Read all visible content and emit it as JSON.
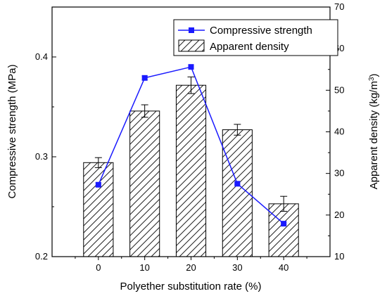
{
  "chart_data": {
    "type": "bar",
    "xlabel": "Polyether substitution rate (%)",
    "ylabel_left": "Compressive strength (MPa)",
    "ylabel_right": "Apparent density (kg/m³)",
    "ylabel_right_base": "Apparent density (kg/m",
    "ylabel_right_sup": "3",
    "ylabel_right_tail": ")",
    "categories": [
      "0",
      "10",
      "20",
      "30",
      "40"
    ],
    "ylim_left": [
      0.2,
      0.45
    ],
    "yticks_left": [
      "0.2",
      "0.3",
      "0.4"
    ],
    "ylim_right": [
      10,
      70
    ],
    "yticks_right": [
      "10",
      "20",
      "30",
      "40",
      "50",
      "60",
      "70"
    ],
    "grid": false,
    "legend_position": "top-right",
    "series": [
      {
        "name": "Compressive strength",
        "kind": "line",
        "axis": "left",
        "color": "#1a1aff",
        "values": [
          0.272,
          0.379,
          0.39,
          0.273,
          0.233
        ],
        "errors": [
          0.002,
          0.002,
          0.002,
          0.001,
          0.001
        ]
      },
      {
        "name": "Apparent density",
        "kind": "bar",
        "axis": "right",
        "pattern": "diagonal-hatch",
        "values": [
          32.6,
          45.0,
          51.2,
          40.5,
          22.7
        ],
        "errors": [
          1.2,
          1.5,
          2.0,
          1.3,
          1.8
        ]
      }
    ]
  }
}
